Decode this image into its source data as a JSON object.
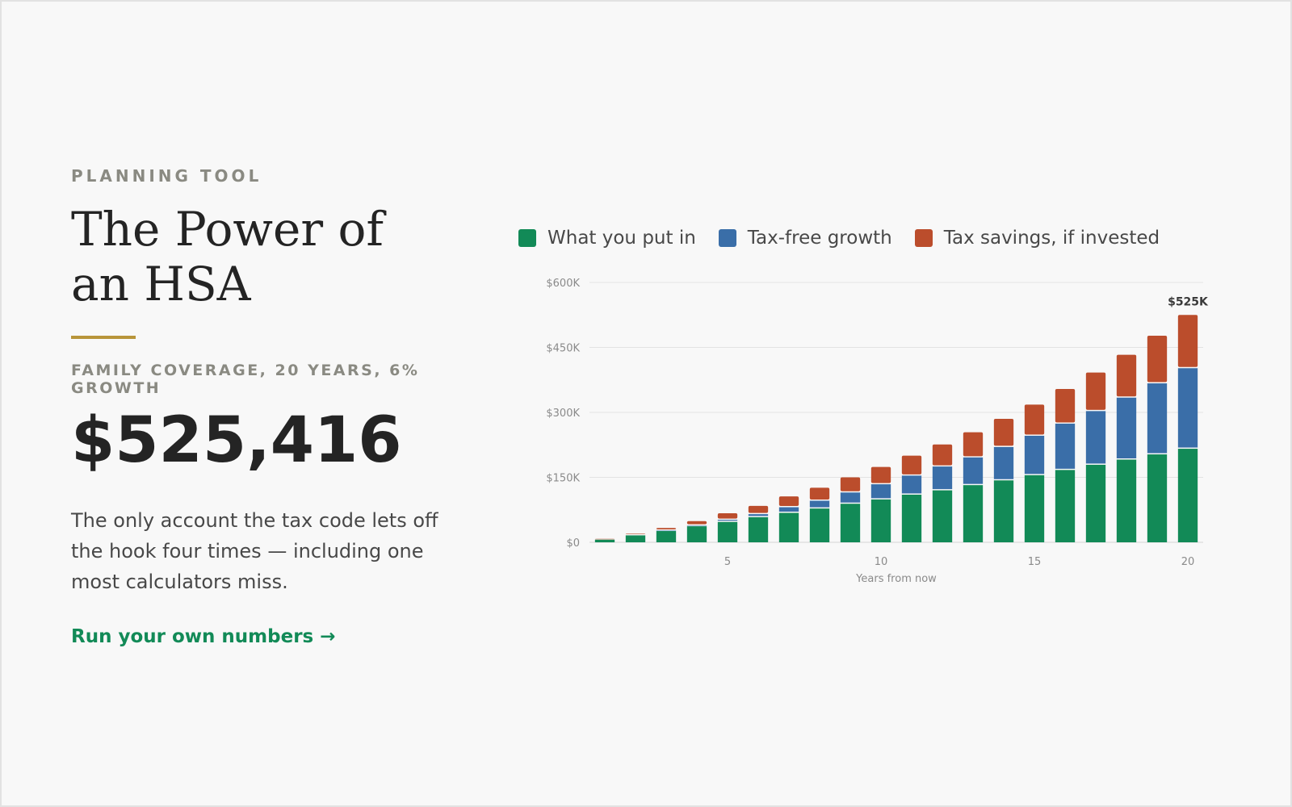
{
  "left": {
    "eyebrow": "PLANNING TOOL",
    "title": "The Power of an HSA",
    "subhead": "FAMILY COVERAGE, 20 YEARS, 6% GROWTH",
    "big_number": "$525,416",
    "description": "The only account the tax code lets off the hook four times — including one most calculators miss.",
    "cta": "Run your own numbers →"
  },
  "colors": {
    "accent_rule": "#b8953a",
    "cta": "#128a57",
    "series_contrib": "#128a57",
    "series_growth": "#3a6ea8",
    "series_tax": "#bb4d2c"
  },
  "chart_data": {
    "type": "bar",
    "stacked": true,
    "categories": [
      1,
      2,
      3,
      4,
      5,
      6,
      7,
      8,
      9,
      10,
      11,
      12,
      13,
      14,
      15,
      16,
      17,
      18,
      19,
      20
    ],
    "series": [
      {
        "name": "What you put in",
        "color": "#128a57",
        "values": [
          6,
          16,
          26,
          37,
          47,
          58,
          68,
          78,
          89,
          99,
          110,
          120,
          132,
          143,
          155,
          167,
          179,
          191,
          203,
          216
        ]
      },
      {
        "name": "Tax-free growth",
        "color": "#3a6ea8",
        "values": [
          0,
          0,
          1,
          2,
          5,
          7,
          13,
          18,
          26,
          35,
          44,
          55,
          64,
          77,
          91,
          107,
          124,
          143,
          164,
          186
        ]
      },
      {
        "name": "Tax savings, if invested",
        "color": "#bb4d2c",
        "values": [
          2,
          4,
          6,
          10,
          15,
          19,
          25,
          30,
          35,
          40,
          46,
          51,
          58,
          65,
          72,
          80,
          89,
          99,
          110,
          123
        ]
      }
    ],
    "total_label": "$525K",
    "xlabel": "Years from now",
    "ylabel": "",
    "xticks": [
      5,
      10,
      15,
      20
    ],
    "yticks": [
      0,
      150000,
      300000,
      450000,
      600000
    ],
    "ytick_labels": [
      "$0",
      "$150K",
      "$300K",
      "$450K",
      "$600K"
    ],
    "ylim": [
      0,
      600
    ],
    "value_unit": "thousands of dollars",
    "grid": true,
    "legend_position": "top"
  }
}
